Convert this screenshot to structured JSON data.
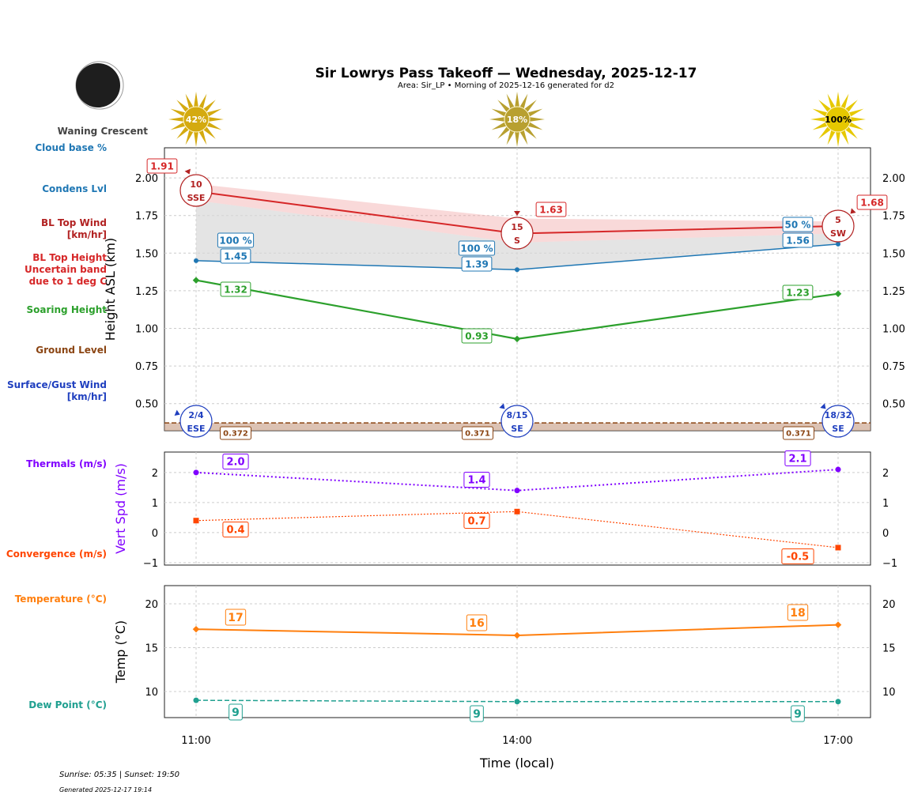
{
  "header": {
    "title": "Sir Lowrys Pass Takeoff — Wednesday, 2025-12-17",
    "subtitle": "Area: Sir_LP • Morning of 2025-12-16 generated for d2",
    "moon_phase": "Waning Crescent"
  },
  "left_labels": {
    "cloud_base": "Cloud base %",
    "condens": "Condens Lvl",
    "bl_wind": "BL Top Wind\n[km/hr]",
    "bl_top": "BL Top Height\nUncertain band\ndue to 1 deg C",
    "soaring": "Soaring Height",
    "ground": "Ground Level",
    "surface_wind": "Surface/Gust Wind\n[km/hr]",
    "thermals": "Thermals (m/s)",
    "convergence": "Convergence (m/s)",
    "temperature": "Temperature (°C)",
    "dew": "Dew Point (°C)"
  },
  "footer": {
    "sun": "Sunrise: 05:35 | Sunset: 19:50",
    "generated": "Generated 2025-12-17 19:14"
  },
  "colors": {
    "bl_top": "#d62728",
    "condens": "#1f77b4",
    "soaring": "#2ca02c",
    "ground": "#8b4513",
    "surface_wind": "#1f3fbf",
    "thermals": "#8000ff",
    "convergence": "#ff4500",
    "temperature": "#ff7f0e",
    "dew": "#20a090"
  },
  "chart_data": [
    {
      "type": "line",
      "ylabel": "Height ASL (km)",
      "x": [
        "11:00",
        "14:00",
        "17:00"
      ],
      "ylim": [
        0.32,
        2.2
      ],
      "yticks": [
        0.5,
        0.75,
        1.0,
        1.25,
        1.5,
        1.75,
        2.0
      ],
      "grid": true,
      "sun_percent": [
        "42%",
        "18%",
        "100%"
      ],
      "series": [
        {
          "key": "bl_top",
          "values": [
            1.91,
            1.63,
            1.68
          ],
          "band_low": [
            1.85,
            1.57,
            1.63
          ],
          "band_high": [
            1.96,
            1.73,
            1.71
          ],
          "labels": [
            "1.91",
            "1.63",
            "1.68"
          ]
        },
        {
          "key": "condens",
          "values": [
            1.45,
            1.39,
            1.56
          ],
          "labels": [
            "1.45",
            "1.39",
            "1.56"
          ],
          "cloud_pct": [
            "100 %",
            "100 %",
            "50 %"
          ]
        },
        {
          "key": "soaring",
          "values": [
            1.32,
            0.93,
            1.23
          ],
          "labels": [
            "1.32",
            "0.93",
            "1.23"
          ]
        },
        {
          "key": "ground",
          "values": [
            0.372,
            0.371,
            0.371
          ],
          "labels": [
            "0.372",
            "0.371",
            "0.371"
          ]
        }
      ],
      "bl_wind": [
        {
          "speed": "10",
          "dir": "SSE",
          "deg": 157.5
        },
        {
          "speed": "15",
          "dir": "S",
          "deg": 180
        },
        {
          "speed": "5",
          "dir": "SW",
          "deg": 225
        }
      ],
      "surface_wind": [
        {
          "speed": "2/4",
          "dir": "ESE",
          "deg": 112.5
        },
        {
          "speed": "8/15",
          "dir": "SE",
          "deg": 135
        },
        {
          "speed": "18/32",
          "dir": "SE",
          "deg": 135
        }
      ]
    },
    {
      "type": "line",
      "ylabel": "Vert Spd (m/s)",
      "x": [
        "11:00",
        "14:00",
        "17:00"
      ],
      "ylim": [
        -1.08,
        2.68
      ],
      "yticks": [
        -1,
        0,
        1,
        2
      ],
      "grid": true,
      "series": [
        {
          "key": "thermals",
          "values": [
            2.0,
            1.4,
            2.1
          ],
          "labels": [
            "2.0",
            "1.4",
            "2.1"
          ]
        },
        {
          "key": "convergence",
          "values": [
            0.4,
            0.7,
            -0.5
          ],
          "labels": [
            "0.4",
            "0.7",
            "-0.5"
          ]
        }
      ]
    },
    {
      "type": "line",
      "ylabel": "Temp (°C)",
      "xlabel": "Time (local)",
      "x": [
        "11:00",
        "14:00",
        "17:00"
      ],
      "ylim": [
        7.03,
        22.07
      ],
      "yticks": [
        10,
        15,
        20
      ],
      "grid": true,
      "series": [
        {
          "key": "temperature",
          "values": [
            17.1,
            16.4,
            17.6
          ],
          "labels": [
            "17",
            "16",
            "18"
          ]
        },
        {
          "key": "dew",
          "values": [
            9.0,
            8.85,
            8.85
          ],
          "labels": [
            "9",
            "9",
            "9"
          ]
        }
      ]
    }
  ]
}
